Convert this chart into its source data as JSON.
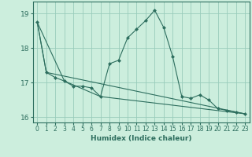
{
  "xlabel": "Humidex (Indice chaleur)",
  "background_color": "#cceedd",
  "grid_color": "#99ccbb",
  "line_color": "#2d6e5e",
  "xlim": [
    -0.5,
    23.5
  ],
  "ylim": [
    15.85,
    19.35
  ],
  "xticks": [
    0,
    1,
    2,
    3,
    4,
    5,
    6,
    7,
    8,
    9,
    10,
    11,
    12,
    13,
    14,
    15,
    16,
    17,
    18,
    19,
    20,
    21,
    22,
    23
  ],
  "yticks": [
    16,
    17,
    18,
    19
  ],
  "series_main": [
    [
      0,
      18.75
    ],
    [
      1,
      17.3
    ],
    [
      2,
      17.15
    ],
    [
      3,
      17.05
    ],
    [
      4,
      16.9
    ],
    [
      5,
      16.9
    ],
    [
      6,
      16.85
    ],
    [
      7,
      16.6
    ],
    [
      8,
      17.55
    ],
    [
      9,
      17.65
    ],
    [
      10,
      18.3
    ],
    [
      11,
      18.55
    ],
    [
      12,
      18.8
    ],
    [
      13,
      19.1
    ],
    [
      14,
      18.6
    ],
    [
      15,
      17.75
    ],
    [
      16,
      16.6
    ],
    [
      17,
      16.55
    ],
    [
      18,
      16.65
    ],
    [
      19,
      16.5
    ],
    [
      20,
      16.25
    ],
    [
      21,
      16.2
    ],
    [
      22,
      16.15
    ],
    [
      23,
      16.1
    ]
  ],
  "series2": [
    [
      0,
      18.75
    ],
    [
      1,
      17.3
    ],
    [
      23,
      16.1
    ]
  ],
  "series3": [
    [
      0,
      18.75
    ],
    [
      3,
      17.05
    ],
    [
      7,
      16.6
    ],
    [
      23,
      16.1
    ]
  ]
}
